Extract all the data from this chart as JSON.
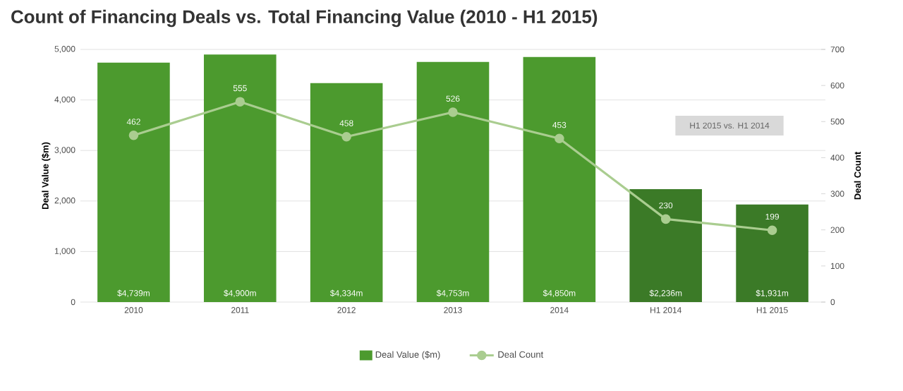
{
  "chart_data": {
    "type": "bar",
    "title": "Count of Financing Deals vs. Total Financing Value (2010 - H1 2015)",
    "categories": [
      "2010",
      "2011",
      "2012",
      "2013",
      "2014",
      "H1 2014",
      "H1 2015"
    ],
    "series": [
      {
        "name": "Deal Value ($m)",
        "color": "#4c9a2e",
        "colors": [
          "#4c9a2e",
          "#4c9a2e",
          "#4c9a2e",
          "#4c9a2e",
          "#4c9a2e",
          "#3b7a27",
          "#3b7a27"
        ],
        "values": [
          4739,
          4900,
          4334,
          4753,
          4850,
          2236,
          1931
        ],
        "value_labels": [
          "$4,739m",
          "$4,900m",
          "$4,334m",
          "$4,753m",
          "$4,850m",
          "$2,236m",
          "$1,931m"
        ]
      },
      {
        "name": "Deal Count",
        "type": "line",
        "axis": "y2",
        "color": "#aacd90",
        "marker": "circle",
        "values": [
          462,
          555,
          458,
          526,
          453,
          230,
          199
        ],
        "value_labels": [
          "462",
          "555",
          "458",
          "526",
          "453",
          "230",
          "199"
        ]
      }
    ],
    "ylabel": "Deal Value ($m)",
    "y2label": "Deal Count",
    "ylim": [
      0,
      5000
    ],
    "yticks": [
      0,
      {
        "value": 1000,
        "label": "1,000"
      },
      {
        "value": 2000,
        "label": "2,000"
      },
      {
        "value": 3000,
        "label": "3,000"
      },
      {
        "value": 4000,
        "label": "4,000"
      },
      {
        "value": 5000,
        "label": "5,000"
      }
    ],
    "y2lim": [
      0,
      700
    ],
    "y2ticks": [
      0,
      100,
      200,
      300,
      400,
      500,
      600,
      700
    ],
    "grid": "y",
    "legend": "bottom",
    "annotations": [
      "H1 2015 vs. H1 2014"
    ]
  }
}
